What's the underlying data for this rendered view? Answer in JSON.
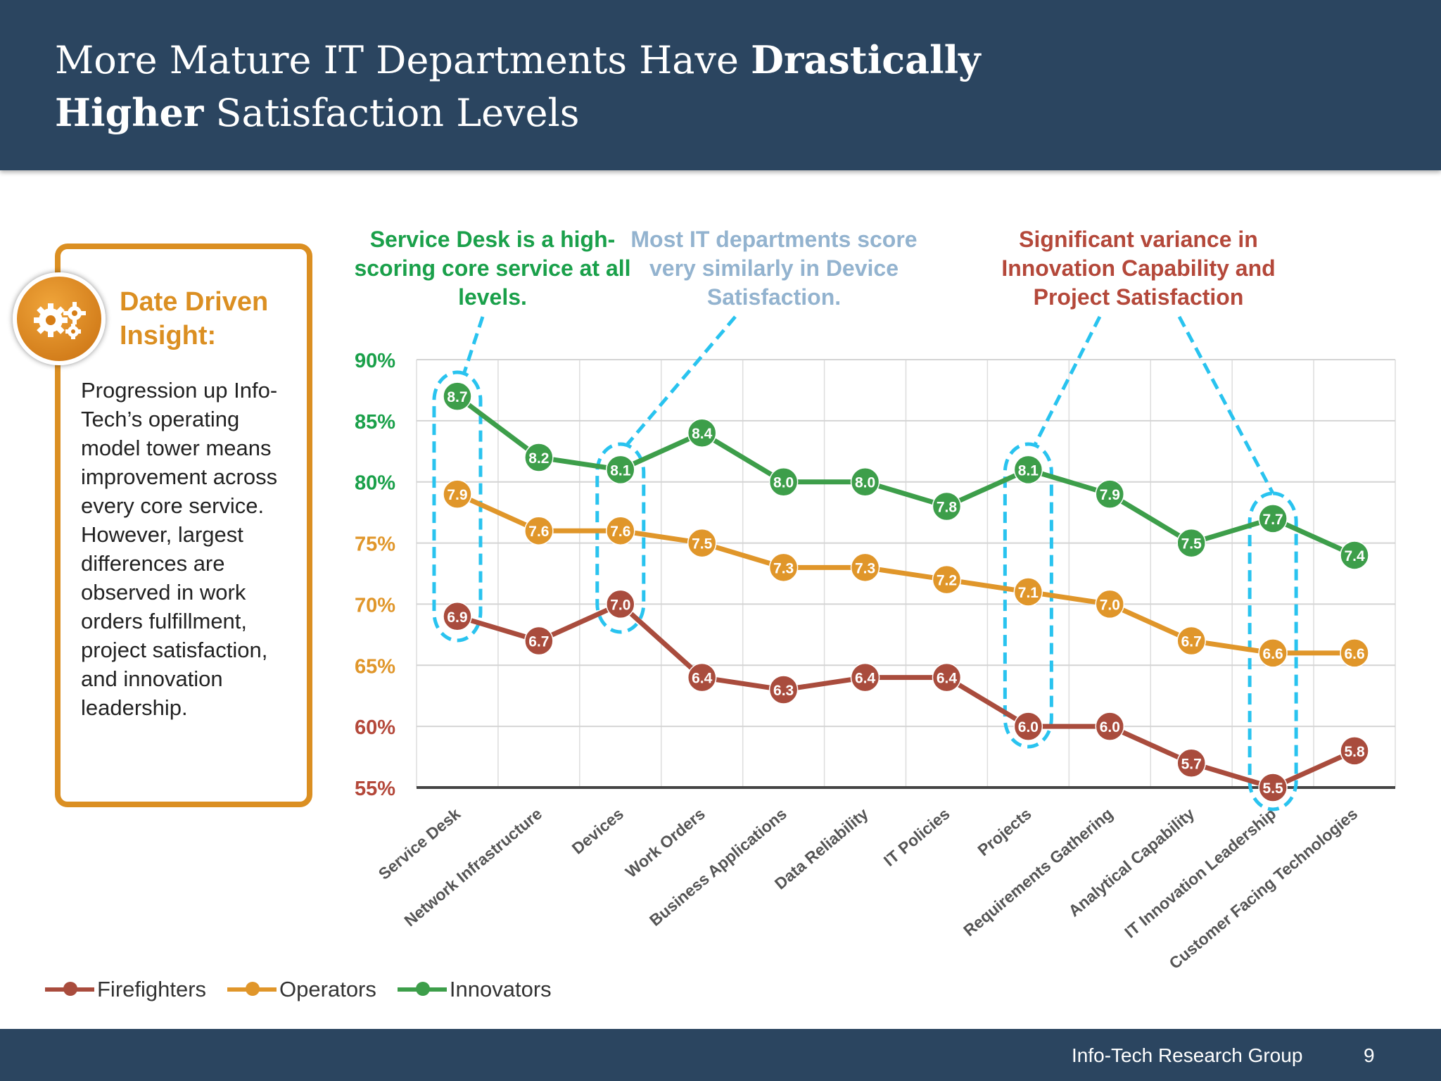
{
  "header": {
    "title_part1": "More Mature IT Departments Have ",
    "title_bold1": "Drastically",
    "title_bold2": "Higher",
    "title_part2": " Satisfaction Levels"
  },
  "insight": {
    "icon": "gears-icon",
    "title": "Date Driven Insight:",
    "body": "Progression up Info-Tech’s operating model tower means improvement across every core service. However, largest differences are observed in work orders fulfillment, project satisfaction, and innovation leadership."
  },
  "annotations": [
    {
      "text": "Service Desk is a high-scoring core service at all levels.",
      "color": "#1aa04a"
    },
    {
      "text": "Most IT departments score very similarly in Device Satisfaction.",
      "color": "#93b3cf"
    },
    {
      "text": "Significant variance in Innovation Capability and Project Satisfaction",
      "color": "#b4483a"
    }
  ],
  "chart_data": {
    "type": "line",
    "categories": [
      "Service Desk",
      "Network Infrastructure",
      "Devices",
      "Work Orders",
      "Business Applications",
      "Data Reliability",
      "IT Policies",
      "Projects",
      "Requirements Gathering",
      "Analytical Capability",
      "IT Innovation Leadership",
      "Customer Facing Technologies"
    ],
    "y_ticks": [
      "90%",
      "85%",
      "80%",
      "75%",
      "70%",
      "65%",
      "60%",
      "55%"
    ],
    "y_tick_colors": [
      "#1aa04a",
      "#1aa04a",
      "#1aa04a",
      "#e0962a",
      "#e0962a",
      "#e0962a",
      "#b4483a",
      "#b4483a"
    ],
    "ylim": [
      55,
      90
    ],
    "grid": true,
    "legend_position": "bottom-left",
    "series": [
      {
        "name": "Firefighters",
        "color": "#a94c3d",
        "values": [
          6.9,
          6.7,
          7.0,
          6.4,
          6.3,
          6.4,
          6.4,
          6.0,
          6.0,
          5.7,
          5.5,
          5.8
        ]
      },
      {
        "name": "Operators",
        "color": "#e0962a",
        "values": [
          7.9,
          7.6,
          7.6,
          7.5,
          7.3,
          7.3,
          7.2,
          7.1,
          7.0,
          6.7,
          6.6,
          6.6
        ]
      },
      {
        "name": "Innovators",
        "color": "#3d9e4a",
        "values": [
          8.7,
          8.2,
          8.1,
          8.4,
          8.0,
          8.0,
          7.8,
          8.1,
          7.9,
          7.5,
          7.7,
          7.4
        ]
      }
    ],
    "highlighted_categories": [
      "Service Desk",
      "Devices",
      "Projects",
      "IT Innovation Leadership"
    ],
    "highlight_color": "#29c3ef"
  },
  "footer": {
    "org": "Info-Tech Research Group",
    "page": "9"
  }
}
